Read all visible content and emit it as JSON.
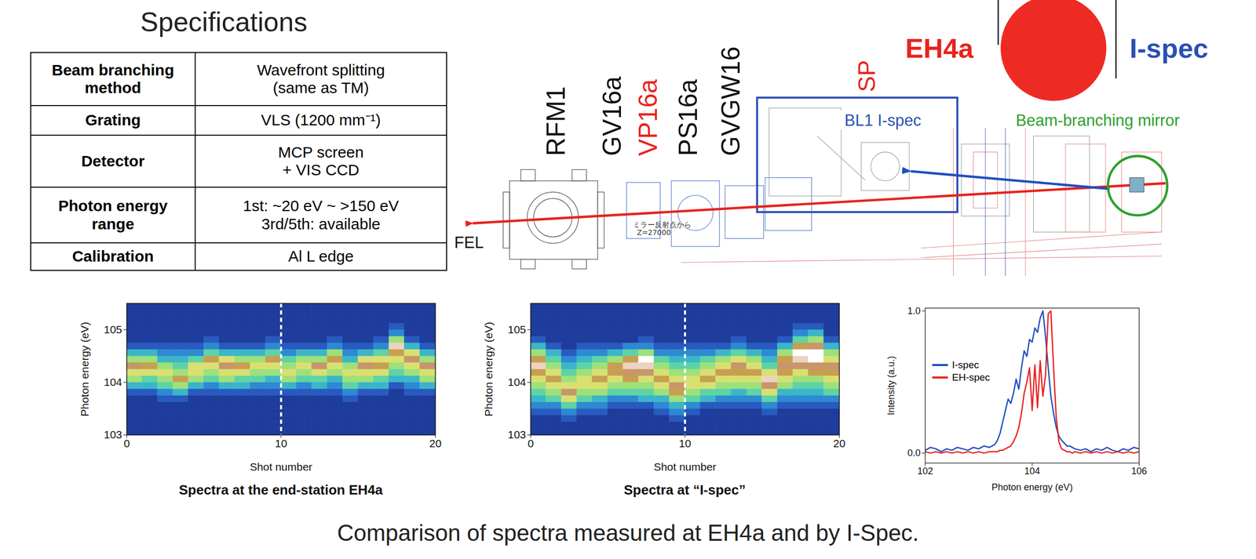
{
  "specifications": {
    "title": "Specifications",
    "rows": [
      {
        "head": [
          "Beam branching",
          "method"
        ],
        "value": [
          "Wavefront splitting",
          "(same as TM)"
        ]
      },
      {
        "head": [
          "Grating"
        ],
        "value": [
          "VLS (1200 mm⁻¹)"
        ]
      },
      {
        "head": [
          "Detector"
        ],
        "value": [
          "MCP screen",
          "+ VIS CCD"
        ]
      },
      {
        "head": [
          "Photon energy",
          "range"
        ],
        "value": [
          "1st: ~20 eV ~ >150 eV",
          "3rd/5th: available"
        ]
      },
      {
        "head": [
          "Calibration"
        ],
        "value": [
          "Al L edge"
        ]
      }
    ]
  },
  "beamline": {
    "components": [
      "RFM1",
      "GV16a",
      "VP16a",
      "PS16a",
      "GVGW16"
    ],
    "highlighted": [
      "VP16a",
      "SP"
    ],
    "sp_label": "SP",
    "ispec_box_label": "BL1 I-spec",
    "mirror_label": "Beam-branching mirror",
    "beam_label": "FEL",
    "drawing_text": [
      "ミラー反射点から",
      "Z=27000"
    ],
    "split_icon": {
      "left": "EH4a",
      "right": "I-spec"
    }
  },
  "chart_data": [
    {
      "type": "heatmap",
      "title": "Spectra at the end-station EH4a",
      "xlabel": "Shot number",
      "ylabel": "Photon energy (eV)",
      "xlim": [
        0,
        20
      ],
      "xticks": [
        0,
        10,
        20
      ],
      "ylim": [
        103,
        105.5
      ],
      "yticks": [
        103,
        104,
        105
      ],
      "shot_edges": [
        0,
        1,
        2,
        3,
        4,
        5,
        6,
        7,
        8,
        9,
        10,
        11,
        12,
        13,
        14,
        15,
        16,
        17,
        18,
        19,
        20
      ],
      "energy_edges": [
        103,
        103.125,
        103.25,
        103.375,
        103.5,
        103.625,
        103.75,
        103.875,
        104,
        104.125,
        104.25,
        104.375,
        104.5,
        104.625,
        104.75,
        104.875,
        105,
        105.125,
        105.25,
        105.375,
        105.5
      ],
      "value_range": [
        0,
        10
      ],
      "vline": 10,
      "cells": [
        [
          0,
          0,
          0,
          0,
          0,
          0,
          1,
          3,
          5,
          6,
          8,
          5,
          3,
          1,
          0,
          0,
          0,
          0,
          0,
          0
        ],
        [
          0,
          0,
          0,
          0,
          0,
          0,
          1,
          3,
          4,
          6,
          7,
          5,
          3,
          1,
          0,
          0,
          0,
          0,
          0,
          0
        ],
        [
          0,
          0,
          0,
          0,
          0,
          1,
          2,
          4,
          5,
          6,
          5,
          3,
          2,
          1,
          0,
          0,
          0,
          0,
          0,
          0
        ],
        [
          0,
          0,
          0,
          0,
          0,
          1,
          3,
          5,
          7,
          5,
          4,
          3,
          2,
          1,
          0,
          0,
          0,
          0,
          0,
          0
        ],
        [
          0,
          0,
          0,
          0,
          0,
          0,
          1,
          3,
          5,
          6,
          6,
          4,
          2,
          1,
          0,
          0,
          0,
          0,
          0,
          0
        ],
        [
          0,
          0,
          0,
          0,
          0,
          0,
          1,
          2,
          4,
          5,
          6,
          7,
          4,
          2,
          1,
          0,
          0,
          0,
          0,
          0
        ],
        [
          0,
          0,
          0,
          0,
          0,
          0,
          1,
          3,
          5,
          6,
          8,
          6,
          3,
          1,
          0,
          0,
          0,
          0,
          0,
          0
        ],
        [
          0,
          0,
          0,
          0,
          0,
          0,
          1,
          3,
          4,
          6,
          7,
          5,
          3,
          1,
          0,
          0,
          0,
          0,
          0,
          0
        ],
        [
          0,
          0,
          0,
          0,
          0,
          0,
          1,
          2,
          4,
          5,
          6,
          5,
          3,
          1,
          0,
          0,
          0,
          0,
          0,
          0
        ],
        [
          0,
          0,
          0,
          0,
          0,
          0,
          1,
          2,
          3,
          5,
          6,
          7,
          4,
          2,
          1,
          0,
          0,
          0,
          0,
          0
        ],
        [
          0,
          0,
          0,
          0,
          0,
          0,
          1,
          3,
          5,
          6,
          5,
          4,
          2,
          1,
          0,
          0,
          0,
          0,
          0,
          0
        ],
        [
          0,
          0,
          0,
          0,
          0,
          0,
          1,
          2,
          4,
          5,
          6,
          5,
          3,
          1,
          0,
          0,
          0,
          0,
          0,
          0
        ],
        [
          0,
          0,
          0,
          0,
          0,
          0,
          1,
          3,
          4,
          6,
          8,
          5,
          3,
          1,
          0,
          0,
          0,
          0,
          0,
          0
        ],
        [
          0,
          0,
          0,
          0,
          0,
          0,
          1,
          2,
          3,
          5,
          6,
          7,
          5,
          2,
          1,
          0,
          0,
          0,
          0,
          0
        ],
        [
          0,
          0,
          0,
          0,
          0,
          1,
          2,
          4,
          5,
          6,
          5,
          3,
          2,
          1,
          0,
          0,
          0,
          0,
          0,
          0
        ],
        [
          0,
          0,
          0,
          0,
          0,
          0,
          1,
          3,
          5,
          6,
          8,
          6,
          3,
          1,
          0,
          0,
          0,
          0,
          0,
          0
        ],
        [
          0,
          0,
          0,
          0,
          0,
          0,
          1,
          3,
          4,
          6,
          7,
          6,
          4,
          2,
          1,
          0,
          0,
          0,
          0,
          0
        ],
        [
          0,
          0,
          0,
          0,
          0,
          0,
          0,
          1,
          3,
          4,
          5,
          6,
          7,
          9,
          5,
          2,
          1,
          0,
          0,
          0
        ],
        [
          0,
          0,
          0,
          0,
          0,
          0,
          1,
          2,
          3,
          5,
          6,
          8,
          6,
          3,
          1,
          0,
          0,
          0,
          0,
          0
        ],
        [
          0,
          0,
          0,
          0,
          0,
          0,
          1,
          3,
          5,
          6,
          8,
          5,
          3,
          1,
          0,
          0,
          0,
          0,
          0,
          0
        ]
      ]
    },
    {
      "type": "heatmap",
      "title": "Spectra at “I-spec”",
      "xlabel": "Shot number",
      "ylabel": "Photon energy (eV)",
      "xlim": [
        0,
        20
      ],
      "xticks": [
        0,
        10,
        20
      ],
      "ylim": [
        103,
        105.5
      ],
      "yticks": [
        103,
        104,
        105
      ],
      "shot_edges": [
        0,
        1,
        2,
        3,
        4,
        5,
        6,
        7,
        8,
        9,
        10,
        11,
        12,
        13,
        14,
        15,
        16,
        17,
        18,
        19,
        20
      ],
      "energy_edges": [
        103,
        103.125,
        103.25,
        103.375,
        103.5,
        103.625,
        103.75,
        103.875,
        104,
        104.125,
        104.25,
        104.375,
        104.5,
        104.625,
        104.75,
        104.875,
        105,
        105.125,
        105.25,
        105.375,
        105.5
      ],
      "value_range": [
        0,
        10
      ],
      "vline": 10,
      "cells": [
        [
          0,
          0,
          0,
          1,
          2,
          3,
          4,
          5,
          6,
          7,
          9,
          7,
          5,
          3,
          1,
          0,
          0,
          0,
          0,
          0
        ],
        [
          0,
          0,
          0,
          1,
          2,
          4,
          5,
          6,
          7,
          6,
          5,
          4,
          3,
          1,
          0,
          0,
          0,
          0,
          0,
          0
        ],
        [
          0,
          0,
          1,
          2,
          4,
          6,
          8,
          6,
          5,
          4,
          3,
          2,
          1,
          0,
          0,
          0,
          0,
          0,
          0,
          0
        ],
        [
          0,
          0,
          0,
          1,
          2,
          4,
          5,
          6,
          6,
          5,
          4,
          3,
          2,
          1,
          0,
          0,
          0,
          0,
          0,
          0
        ],
        [
          0,
          0,
          0,
          1,
          2,
          3,
          5,
          6,
          7,
          6,
          5,
          4,
          2,
          1,
          0,
          0,
          0,
          0,
          0,
          0
        ],
        [
          0,
          0,
          0,
          0,
          1,
          2,
          4,
          5,
          6,
          7,
          7,
          5,
          3,
          1,
          0,
          0,
          0,
          0,
          0,
          0
        ],
        [
          0,
          0,
          0,
          0,
          1,
          2,
          4,
          5,
          7,
          8,
          9,
          7,
          4,
          2,
          0,
          0,
          0,
          0,
          0,
          0
        ],
        [
          0,
          0,
          0,
          0,
          1,
          3,
          4,
          5,
          6,
          8,
          9,
          10,
          5,
          2,
          1,
          0,
          0,
          0,
          0,
          0
        ],
        [
          0,
          0,
          0,
          1,
          2,
          3,
          5,
          6,
          7,
          6,
          5,
          4,
          2,
          1,
          0,
          0,
          0,
          0,
          0,
          0
        ],
        [
          0,
          0,
          1,
          2,
          3,
          5,
          7,
          8,
          6,
          5,
          4,
          3,
          2,
          1,
          0,
          0,
          0,
          0,
          0,
          0
        ],
        [
          0,
          0,
          0,
          1,
          2,
          4,
          5,
          6,
          6,
          5,
          4,
          3,
          2,
          1,
          0,
          0,
          0,
          0,
          0,
          0
        ],
        [
          0,
          0,
          0,
          0,
          1,
          3,
          4,
          6,
          7,
          6,
          5,
          4,
          2,
          1,
          0,
          0,
          0,
          0,
          0,
          0
        ],
        [
          0,
          0,
          0,
          0,
          1,
          2,
          4,
          5,
          6,
          7,
          6,
          5,
          3,
          1,
          0,
          0,
          0,
          0,
          0,
          0
        ],
        [
          0,
          0,
          0,
          0,
          1,
          2,
          3,
          5,
          6,
          7,
          8,
          6,
          4,
          2,
          1,
          0,
          0,
          0,
          0,
          0
        ],
        [
          0,
          0,
          0,
          0,
          1,
          2,
          4,
          5,
          6,
          7,
          6,
          5,
          3,
          1,
          0,
          0,
          0,
          0,
          0,
          0
        ],
        [
          0,
          0,
          0,
          1,
          2,
          4,
          6,
          8,
          9,
          6,
          4,
          3,
          2,
          1,
          0,
          0,
          0,
          0,
          0,
          0
        ],
        [
          0,
          0,
          0,
          0,
          1,
          2,
          3,
          5,
          6,
          7,
          8,
          7,
          5,
          3,
          1,
          0,
          0,
          0,
          0,
          0
        ],
        [
          0,
          0,
          0,
          0,
          1,
          2,
          3,
          4,
          5,
          6,
          8,
          9,
          10,
          7,
          4,
          2,
          1,
          0,
          0,
          0
        ],
        [
          0,
          0,
          0,
          0,
          1,
          2,
          3,
          4,
          5,
          7,
          8,
          10,
          10,
          8,
          5,
          3,
          1,
          0,
          0,
          0
        ],
        [
          0,
          0,
          0,
          0,
          1,
          2,
          4,
          5,
          6,
          7,
          8,
          6,
          5,
          3,
          1,
          0,
          0,
          0,
          0,
          0
        ]
      ]
    },
    {
      "type": "line",
      "xlabel": "Photon energy (eV)",
      "ylabel": "Intensity (a.u.)",
      "xlim": [
        102,
        106
      ],
      "xticks": [
        102,
        104,
        106
      ],
      "ylim": [
        -0.07,
        1.02
      ],
      "yticks": [
        {
          "value": 0,
          "label": "0.0"
        },
        {
          "value": 1,
          "label": "1.0"
        }
      ],
      "legend": "upper left",
      "x": [
        102.0,
        102.1,
        102.2,
        102.3,
        102.4,
        102.5,
        102.6,
        102.7,
        102.8,
        102.9,
        103.0,
        103.1,
        103.2,
        103.3,
        103.35,
        103.4,
        103.45,
        103.5,
        103.55,
        103.6,
        103.65,
        103.7,
        103.75,
        103.8,
        103.85,
        103.9,
        103.95,
        104.0,
        104.05,
        104.1,
        104.15,
        104.2,
        104.25,
        104.3,
        104.35,
        104.4,
        104.45,
        104.5,
        104.55,
        104.6,
        104.65,
        104.7,
        104.75,
        104.8,
        104.9,
        105.0,
        105.1,
        105.2,
        105.3,
        105.4,
        105.5,
        105.6,
        105.7,
        105.8,
        105.9,
        106.0
      ],
      "series": [
        {
          "name": "I-spec",
          "color": "#1f4fbf",
          "values": [
            0.02,
            0.04,
            0.03,
            0.01,
            0.03,
            0.02,
            0.04,
            0.03,
            0.02,
            0.04,
            0.03,
            0.05,
            0.04,
            0.06,
            0.09,
            0.14,
            0.22,
            0.3,
            0.38,
            0.35,
            0.42,
            0.52,
            0.45,
            0.6,
            0.72,
            0.68,
            0.8,
            0.78,
            0.88,
            0.85,
            0.95,
            1.0,
            0.82,
            0.6,
            0.4,
            0.28,
            0.18,
            0.12,
            0.09,
            0.07,
            0.05,
            0.05,
            0.04,
            0.03,
            0.02,
            0.03,
            0.01,
            0.03,
            0.02,
            0.04,
            0.02,
            0.01,
            0.03,
            0.02,
            0.04,
            0.03
          ]
        },
        {
          "name": "EH-spec",
          "color": "#e8231f",
          "values": [
            0.01,
            0.0,
            0.01,
            0.0,
            0.01,
            0.0,
            0.01,
            0.0,
            0.01,
            0.0,
            0.01,
            0.0,
            0.01,
            0.01,
            0.01,
            0.02,
            0.02,
            0.03,
            0.04,
            0.05,
            0.08,
            0.12,
            0.18,
            0.28,
            0.42,
            0.5,
            0.6,
            0.3,
            0.62,
            0.32,
            0.65,
            0.4,
            0.55,
            0.98,
            1.0,
            0.6,
            0.25,
            0.08,
            0.03,
            0.02,
            0.01,
            0.01,
            0.0,
            0.01,
            0.0,
            0.01,
            0.0,
            0.01,
            0.0,
            0.01,
            0.0,
            0.01,
            0.0,
            0.01,
            0.0,
            0.01
          ]
        }
      ]
    }
  ],
  "caption": "Comparison of spectra measured at EH4a and by I-Spec."
}
